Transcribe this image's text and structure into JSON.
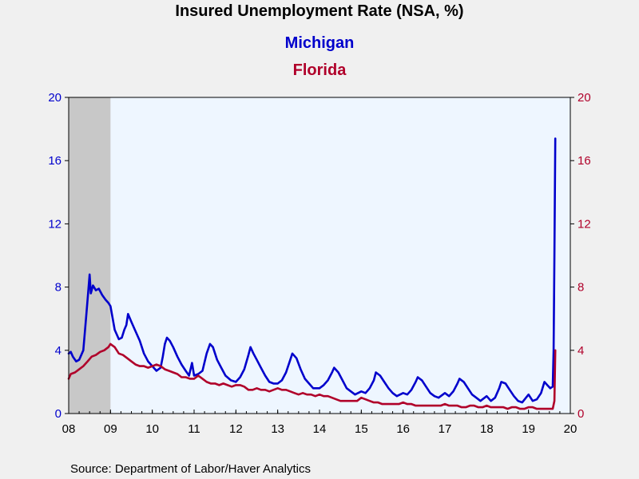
{
  "chart_data": {
    "type": "line",
    "title": "Insured Unemployment Rate (NSA, %)",
    "source": "Source:  Department of Labor/Haver Analytics",
    "x_tick_labels": [
      "08",
      "09",
      "10",
      "11",
      "12",
      "13",
      "14",
      "15",
      "16",
      "17",
      "18",
      "19",
      "20"
    ],
    "y_left": {
      "ticks": [
        "0",
        "4",
        "8",
        "12",
        "16",
        "20"
      ],
      "ylim": [
        0,
        20
      ],
      "color": "#0000cc"
    },
    "y_right": {
      "ticks": [
        "0",
        "4",
        "8",
        "12",
        "16",
        "20"
      ],
      "ylim": [
        0,
        20
      ],
      "color": "#b0002a"
    },
    "xlim": [
      2008.0,
      2020.0
    ],
    "recession_shading": {
      "start": 2008.0,
      "end": 2009.0,
      "color": "#c8c8c8"
    },
    "plot_background": "#eef6ff",
    "series": [
      {
        "name": "Michigan",
        "color": "#0000cc",
        "points": [
          [
            2008.0,
            3.8
          ],
          [
            2008.05,
            3.9
          ],
          [
            2008.1,
            3.6
          ],
          [
            2008.18,
            3.3
          ],
          [
            2008.25,
            3.4
          ],
          [
            2008.35,
            4.0
          ],
          [
            2008.42,
            6.2
          ],
          [
            2008.47,
            7.8
          ],
          [
            2008.5,
            8.8
          ],
          [
            2008.53,
            7.6
          ],
          [
            2008.58,
            8.1
          ],
          [
            2008.65,
            7.8
          ],
          [
            2008.72,
            7.9
          ],
          [
            2008.8,
            7.5
          ],
          [
            2008.88,
            7.2
          ],
          [
            2008.95,
            7.0
          ],
          [
            2009.0,
            6.8
          ],
          [
            2009.1,
            5.3
          ],
          [
            2009.2,
            4.7
          ],
          [
            2009.27,
            4.8
          ],
          [
            2009.33,
            5.3
          ],
          [
            2009.38,
            5.6
          ],
          [
            2009.42,
            6.3
          ],
          [
            2009.5,
            5.8
          ],
          [
            2009.6,
            5.2
          ],
          [
            2009.7,
            4.6
          ],
          [
            2009.8,
            3.8
          ],
          [
            2009.9,
            3.3
          ],
          [
            2010.0,
            3.0
          ],
          [
            2010.1,
            2.7
          ],
          [
            2010.2,
            2.9
          ],
          [
            2010.25,
            3.6
          ],
          [
            2010.3,
            4.4
          ],
          [
            2010.35,
            4.8
          ],
          [
            2010.42,
            4.6
          ],
          [
            2010.5,
            4.2
          ],
          [
            2010.6,
            3.6
          ],
          [
            2010.7,
            3.1
          ],
          [
            2010.8,
            2.7
          ],
          [
            2010.88,
            2.4
          ],
          [
            2010.95,
            3.2
          ],
          [
            2011.0,
            2.4
          ],
          [
            2011.1,
            2.5
          ],
          [
            2011.2,
            2.7
          ],
          [
            2011.3,
            3.8
          ],
          [
            2011.38,
            4.4
          ],
          [
            2011.45,
            4.2
          ],
          [
            2011.55,
            3.4
          ],
          [
            2011.65,
            2.9
          ],
          [
            2011.75,
            2.4
          ],
          [
            2011.88,
            2.1
          ],
          [
            2012.0,
            2.0
          ],
          [
            2012.1,
            2.3
          ],
          [
            2012.2,
            2.8
          ],
          [
            2012.3,
            3.7
          ],
          [
            2012.35,
            4.2
          ],
          [
            2012.42,
            3.8
          ],
          [
            2012.5,
            3.4
          ],
          [
            2012.6,
            2.9
          ],
          [
            2012.7,
            2.4
          ],
          [
            2012.8,
            2.0
          ],
          [
            2012.9,
            1.9
          ],
          [
            2013.0,
            1.9
          ],
          [
            2013.1,
            2.1
          ],
          [
            2013.2,
            2.6
          ],
          [
            2013.3,
            3.4
          ],
          [
            2013.35,
            3.8
          ],
          [
            2013.45,
            3.5
          ],
          [
            2013.55,
            2.8
          ],
          [
            2013.65,
            2.2
          ],
          [
            2013.75,
            1.9
          ],
          [
            2013.85,
            1.6
          ],
          [
            2014.0,
            1.6
          ],
          [
            2014.1,
            1.8
          ],
          [
            2014.2,
            2.1
          ],
          [
            2014.3,
            2.6
          ],
          [
            2014.35,
            2.9
          ],
          [
            2014.45,
            2.6
          ],
          [
            2014.55,
            2.1
          ],
          [
            2014.65,
            1.6
          ],
          [
            2014.75,
            1.4
          ],
          [
            2014.85,
            1.2
          ],
          [
            2015.0,
            1.4
          ],
          [
            2015.1,
            1.3
          ],
          [
            2015.2,
            1.6
          ],
          [
            2015.3,
            2.1
          ],
          [
            2015.35,
            2.6
          ],
          [
            2015.45,
            2.4
          ],
          [
            2015.55,
            2.0
          ],
          [
            2015.65,
            1.6
          ],
          [
            2015.75,
            1.3
          ],
          [
            2015.85,
            1.1
          ],
          [
            2016.0,
            1.3
          ],
          [
            2016.1,
            1.2
          ],
          [
            2016.2,
            1.5
          ],
          [
            2016.3,
            2.0
          ],
          [
            2016.35,
            2.3
          ],
          [
            2016.45,
            2.1
          ],
          [
            2016.55,
            1.7
          ],
          [
            2016.65,
            1.3
          ],
          [
            2016.75,
            1.1
          ],
          [
            2016.85,
            1.0
          ],
          [
            2017.0,
            1.3
          ],
          [
            2017.1,
            1.1
          ],
          [
            2017.2,
            1.4
          ],
          [
            2017.3,
            1.9
          ],
          [
            2017.35,
            2.2
          ],
          [
            2017.45,
            2.0
          ],
          [
            2017.55,
            1.6
          ],
          [
            2017.65,
            1.2
          ],
          [
            2017.75,
            1.0
          ],
          [
            2017.85,
            0.8
          ],
          [
            2018.0,
            1.1
          ],
          [
            2018.1,
            0.8
          ],
          [
            2018.2,
            1.0
          ],
          [
            2018.3,
            1.6
          ],
          [
            2018.35,
            2.0
          ],
          [
            2018.45,
            1.9
          ],
          [
            2018.55,
            1.5
          ],
          [
            2018.65,
            1.1
          ],
          [
            2018.75,
            0.8
          ],
          [
            2018.85,
            0.7
          ],
          [
            2019.0,
            1.2
          ],
          [
            2019.1,
            0.8
          ],
          [
            2019.2,
            0.9
          ],
          [
            2019.3,
            1.3
          ],
          [
            2019.38,
            2.0
          ],
          [
            2019.45,
            1.8
          ],
          [
            2019.52,
            1.6
          ],
          [
            2019.58,
            1.7
          ],
          [
            2019.6,
            4.0
          ],
          [
            2019.62,
            10.0
          ],
          [
            2019.64,
            17.4
          ]
        ]
      },
      {
        "name": "Florida",
        "color": "#b0002a",
        "points": [
          [
            2008.0,
            2.2
          ],
          [
            2008.05,
            2.5
          ],
          [
            2008.15,
            2.6
          ],
          [
            2008.25,
            2.8
          ],
          [
            2008.35,
            3.0
          ],
          [
            2008.45,
            3.3
          ],
          [
            2008.55,
            3.6
          ],
          [
            2008.65,
            3.7
          ],
          [
            2008.75,
            3.9
          ],
          [
            2008.85,
            4.0
          ],
          [
            2008.95,
            4.2
          ],
          [
            2009.0,
            4.4
          ],
          [
            2009.1,
            4.2
          ],
          [
            2009.2,
            3.8
          ],
          [
            2009.3,
            3.7
          ],
          [
            2009.4,
            3.5
          ],
          [
            2009.5,
            3.3
          ],
          [
            2009.6,
            3.1
          ],
          [
            2009.7,
            3.0
          ],
          [
            2009.8,
            3.0
          ],
          [
            2009.9,
            2.9
          ],
          [
            2010.0,
            3.0
          ],
          [
            2010.1,
            3.1
          ],
          [
            2010.2,
            3.0
          ],
          [
            2010.3,
            2.8
          ],
          [
            2010.4,
            2.7
          ],
          [
            2010.5,
            2.6
          ],
          [
            2010.6,
            2.5
          ],
          [
            2010.7,
            2.3
          ],
          [
            2010.8,
            2.3
          ],
          [
            2010.9,
            2.2
          ],
          [
            2011.0,
            2.2
          ],
          [
            2011.1,
            2.4
          ],
          [
            2011.2,
            2.2
          ],
          [
            2011.3,
            2.0
          ],
          [
            2011.4,
            1.9
          ],
          [
            2011.5,
            1.9
          ],
          [
            2011.6,
            1.8
          ],
          [
            2011.7,
            1.9
          ],
          [
            2011.8,
            1.8
          ],
          [
            2011.9,
            1.7
          ],
          [
            2012.0,
            1.8
          ],
          [
            2012.1,
            1.8
          ],
          [
            2012.2,
            1.7
          ],
          [
            2012.3,
            1.5
          ],
          [
            2012.4,
            1.5
          ],
          [
            2012.5,
            1.6
          ],
          [
            2012.6,
            1.5
          ],
          [
            2012.7,
            1.5
          ],
          [
            2012.8,
            1.4
          ],
          [
            2012.9,
            1.5
          ],
          [
            2013.0,
            1.6
          ],
          [
            2013.1,
            1.5
          ],
          [
            2013.2,
            1.5
          ],
          [
            2013.3,
            1.4
          ],
          [
            2013.4,
            1.3
          ],
          [
            2013.5,
            1.2
          ],
          [
            2013.6,
            1.3
          ],
          [
            2013.7,
            1.2
          ],
          [
            2013.8,
            1.2
          ],
          [
            2013.9,
            1.1
          ],
          [
            2014.0,
            1.2
          ],
          [
            2014.1,
            1.1
          ],
          [
            2014.2,
            1.1
          ],
          [
            2014.3,
            1.0
          ],
          [
            2014.4,
            0.9
          ],
          [
            2014.5,
            0.8
          ],
          [
            2014.6,
            0.8
          ],
          [
            2014.7,
            0.8
          ],
          [
            2014.8,
            0.8
          ],
          [
            2014.9,
            0.8
          ],
          [
            2015.0,
            1.0
          ],
          [
            2015.1,
            0.9
          ],
          [
            2015.2,
            0.8
          ],
          [
            2015.3,
            0.7
          ],
          [
            2015.4,
            0.7
          ],
          [
            2015.5,
            0.6
          ],
          [
            2015.6,
            0.6
          ],
          [
            2015.7,
            0.6
          ],
          [
            2015.8,
            0.6
          ],
          [
            2015.9,
            0.6
          ],
          [
            2016.0,
            0.7
          ],
          [
            2016.1,
            0.6
          ],
          [
            2016.2,
            0.6
          ],
          [
            2016.3,
            0.5
          ],
          [
            2016.4,
            0.5
          ],
          [
            2016.5,
            0.5
          ],
          [
            2016.6,
            0.5
          ],
          [
            2016.7,
            0.5
          ],
          [
            2016.8,
            0.5
          ],
          [
            2016.9,
            0.5
          ],
          [
            2017.0,
            0.6
          ],
          [
            2017.1,
            0.5
          ],
          [
            2017.2,
            0.5
          ],
          [
            2017.3,
            0.5
          ],
          [
            2017.4,
            0.4
          ],
          [
            2017.5,
            0.4
          ],
          [
            2017.6,
            0.5
          ],
          [
            2017.7,
            0.5
          ],
          [
            2017.8,
            0.4
          ],
          [
            2017.9,
            0.4
          ],
          [
            2018.0,
            0.5
          ],
          [
            2018.1,
            0.4
          ],
          [
            2018.2,
            0.4
          ],
          [
            2018.3,
            0.4
          ],
          [
            2018.4,
            0.4
          ],
          [
            2018.5,
            0.3
          ],
          [
            2018.6,
            0.4
          ],
          [
            2018.7,
            0.4
          ],
          [
            2018.8,
            0.3
          ],
          [
            2018.9,
            0.3
          ],
          [
            2019.0,
            0.4
          ],
          [
            2019.1,
            0.4
          ],
          [
            2019.2,
            0.3
          ],
          [
            2019.3,
            0.3
          ],
          [
            2019.4,
            0.3
          ],
          [
            2019.5,
            0.3
          ],
          [
            2019.58,
            0.3
          ],
          [
            2019.62,
            0.8
          ],
          [
            2019.64,
            4.0
          ]
        ]
      }
    ]
  }
}
